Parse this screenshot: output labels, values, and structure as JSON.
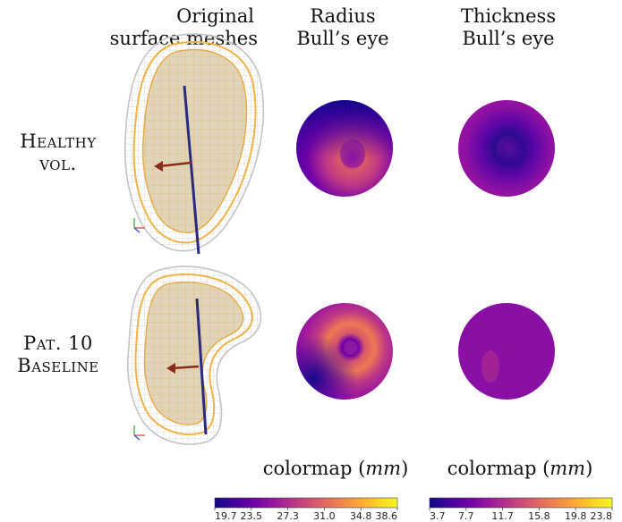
{
  "columns": {
    "original": [
      "Original",
      "surface meshes"
    ],
    "radius": [
      "Radius",
      "Bull’s eye"
    ],
    "thickness": [
      "Thickness",
      "Bull’s eye"
    ]
  },
  "rows": [
    {
      "line1": "Healthy",
      "line2": "vol."
    },
    {
      "line1": "Pat. 10",
      "line2": "Baseline"
    }
  ],
  "colorbars": [
    {
      "label": "colormap",
      "unit": "mm",
      "colormap": "plasma",
      "ticks": [
        "19.7",
        "23.5",
        "27.3",
        "31.0",
        "34.8",
        "38.6"
      ]
    },
    {
      "label": "colormap",
      "unit": "mm",
      "colormap": "plasma",
      "ticks": [
        "3.7",
        "7.7",
        "11.7",
        "15.8",
        "19.8",
        "23.8"
      ]
    }
  ],
  "colors": {
    "mesh_outer": "#c8c8c8",
    "mesh_mid": "#f0b040",
    "mesh_inner_fill": "#d8c8a8",
    "axis_line": "#2a2a80",
    "arrow": "#8b2a1a",
    "plasma": [
      "#0d0887",
      "#46039f",
      "#7201a8",
      "#9c179e",
      "#bd3786",
      "#d8576b",
      "#ed7953",
      "#fb9f3a",
      "#fdca26",
      "#f0f921"
    ]
  }
}
